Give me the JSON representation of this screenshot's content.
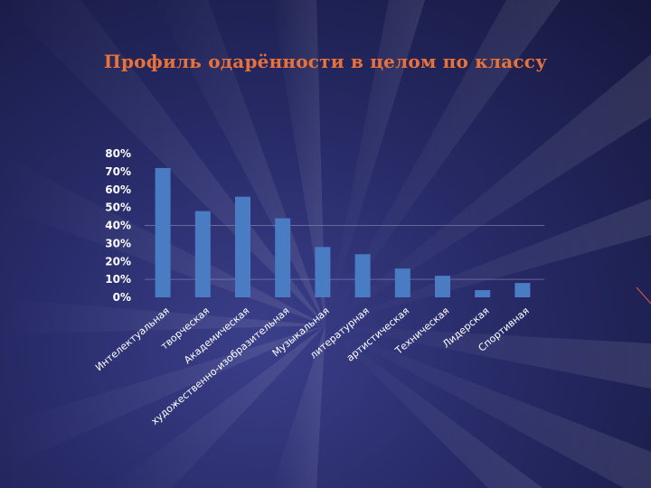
{
  "slide": {
    "background_color": "#272a66",
    "title_color": "#e8723a"
  },
  "chart_data": {
    "type": "bar",
    "title": "Профиль одарённости в целом по классу",
    "xlabel": "",
    "ylabel": "",
    "ylim": [
      0,
      0.8
    ],
    "yticks": [
      "0%",
      "10%",
      "20%",
      "30%",
      "40%",
      "50%",
      "60%",
      "70%",
      "80%"
    ],
    "grid": true,
    "bar_color": "#4a7cc4",
    "categories": [
      "Интелектуальная",
      "творческая",
      "Академическая",
      "художественно-изобразительная",
      "Музыкальная",
      "литературная",
      "артистическая",
      "Техническая",
      "Лидерская",
      "Спортивная"
    ],
    "values": [
      0.72,
      0.48,
      0.56,
      0.44,
      0.28,
      0.24,
      0.16,
      0.12,
      0.04,
      0.08
    ]
  }
}
